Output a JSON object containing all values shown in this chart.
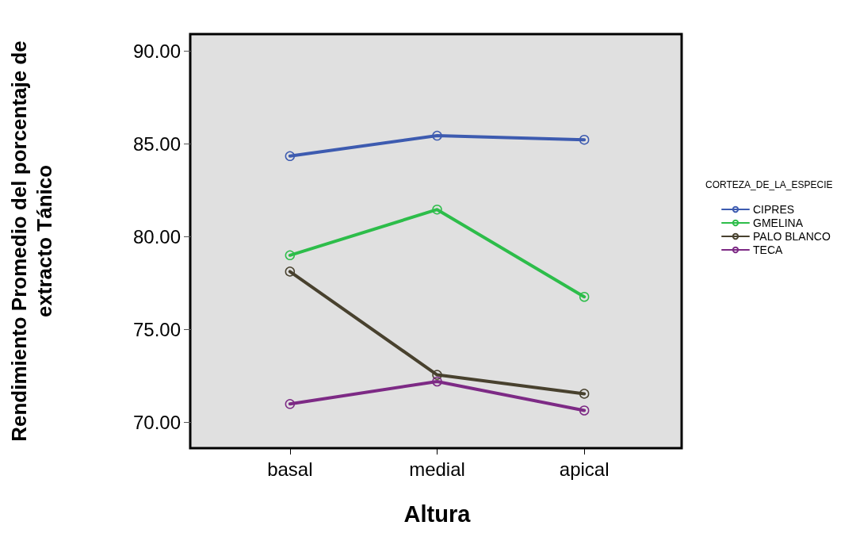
{
  "chart_data": {
    "type": "line",
    "xlabel": "Altura",
    "ylabel": "Rendimiento Promedio del porcentaje de\nextracto Tánico",
    "legend_title": "CORTEZA_DE_LA_ESPECIE",
    "categories": [
      "basal",
      "medial",
      "apical"
    ],
    "series": [
      {
        "name": "CIPRES",
        "color": "#3d5bb0",
        "values": [
          84.33,
          85.43,
          85.21
        ]
      },
      {
        "name": "GMELINA",
        "color": "#2dbd4a",
        "values": [
          78.99,
          81.45,
          76.75
        ]
      },
      {
        "name": "PALO BLANCO",
        "color": "#48412e",
        "values": [
          78.11,
          72.55,
          71.53
        ]
      },
      {
        "name": "TECA",
        "color": "#7d2a85",
        "values": [
          70.98,
          72.19,
          70.63
        ]
      }
    ],
    "ylim": [
      68.6,
      90.9
    ],
    "yticks": [
      {
        "value": 70,
        "label": "70.00"
      },
      {
        "value": 75,
        "label": "75.00"
      },
      {
        "value": 80,
        "label": "80.00"
      },
      {
        "value": 85,
        "label": "85.00"
      },
      {
        "value": 90,
        "label": "90.00"
      }
    ],
    "grid": false,
    "legend": "right",
    "marker": "circle",
    "line_style": "solid"
  }
}
